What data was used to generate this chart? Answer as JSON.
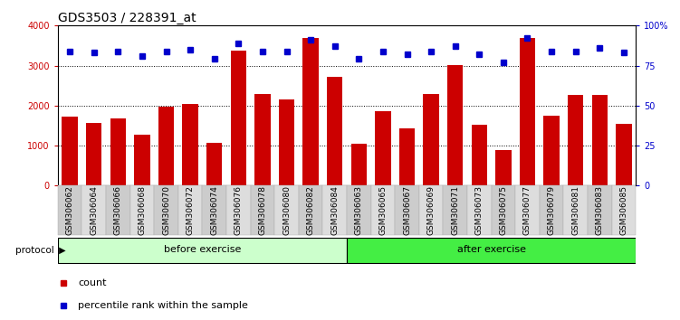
{
  "title": "GDS3503 / 228391_at",
  "categories": [
    "GSM306062",
    "GSM306064",
    "GSM306066",
    "GSM306068",
    "GSM306070",
    "GSM306072",
    "GSM306074",
    "GSM306076",
    "GSM306078",
    "GSM306080",
    "GSM306082",
    "GSM306084",
    "GSM306063",
    "GSM306065",
    "GSM306067",
    "GSM306069",
    "GSM306071",
    "GSM306073",
    "GSM306075",
    "GSM306077",
    "GSM306079",
    "GSM306081",
    "GSM306083",
    "GSM306085"
  ],
  "counts": [
    1720,
    1570,
    1680,
    1280,
    1980,
    2050,
    1060,
    3370,
    2280,
    2160,
    3680,
    2720,
    1050,
    1860,
    1430,
    2300,
    3010,
    1530,
    880,
    3680,
    1750,
    2260,
    2260,
    1540
  ],
  "percentiles": [
    84,
    83,
    84,
    81,
    84,
    85,
    79,
    89,
    84,
    84,
    91,
    87,
    79,
    84,
    82,
    84,
    87,
    82,
    77,
    92,
    84,
    84,
    86,
    83
  ],
  "bar_color": "#cc0000",
  "dot_color": "#0000cc",
  "ylim_left": [
    0,
    4000
  ],
  "ylim_right": [
    0,
    100
  ],
  "yticks_left": [
    0,
    1000,
    2000,
    3000,
    4000
  ],
  "ytick_labels_left": [
    "0",
    "1000",
    "2000",
    "3000",
    "4000"
  ],
  "yticks_right": [
    0,
    25,
    50,
    75,
    100
  ],
  "ytick_labels_right": [
    "0",
    "25",
    "50",
    "75",
    "100%"
  ],
  "grid_lines": [
    1000,
    2000,
    3000
  ],
  "before_exercise_count": 12,
  "after_exercise_count": 12,
  "before_label": "before exercise",
  "after_label": "after exercise",
  "protocol_label": "protocol",
  "before_color": "#ccffcc",
  "after_color": "#44ee44",
  "legend_count_label": "count",
  "legend_percentile_label": "percentile rank within the sample",
  "bg_color": "#ffffff",
  "tick_label_color_left": "#cc0000",
  "tick_label_color_right": "#0000cc",
  "title_fontsize": 10,
  "tick_fontsize": 7,
  "bar_width": 0.65,
  "cell_color_even": "#cccccc",
  "cell_color_odd": "#dddddd"
}
